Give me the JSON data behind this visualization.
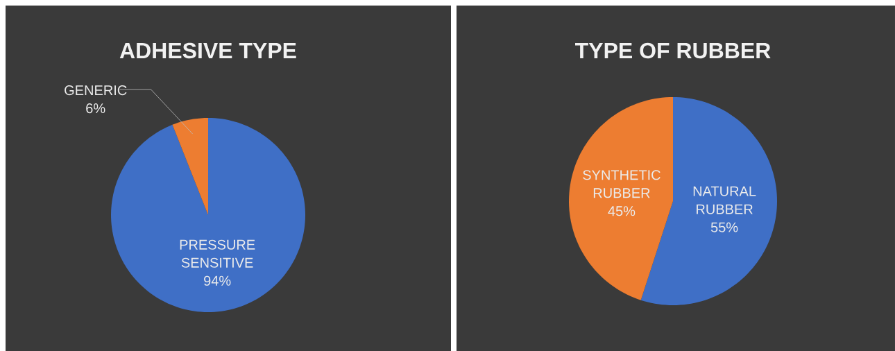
{
  "chart_data": [
    {
      "type": "pie",
      "title": "ADHESIVE TYPE",
      "categories": [
        "PRESSURE SENSITIVE",
        "GENERIC"
      ],
      "values": [
        94,
        6
      ],
      "colors": [
        "#3f6fc6",
        "#ed7d31"
      ],
      "value_labels": [
        "94%",
        "6%"
      ]
    },
    {
      "type": "pie",
      "title": "TYPE OF RUBBER",
      "categories": [
        "NATURAL RUBBER",
        "SYNTHETIC RUBBER"
      ],
      "values": [
        55,
        45
      ],
      "colors": [
        "#3f6fc6",
        "#ed7d31"
      ],
      "value_labels": [
        "55%",
        "45%"
      ]
    }
  ]
}
